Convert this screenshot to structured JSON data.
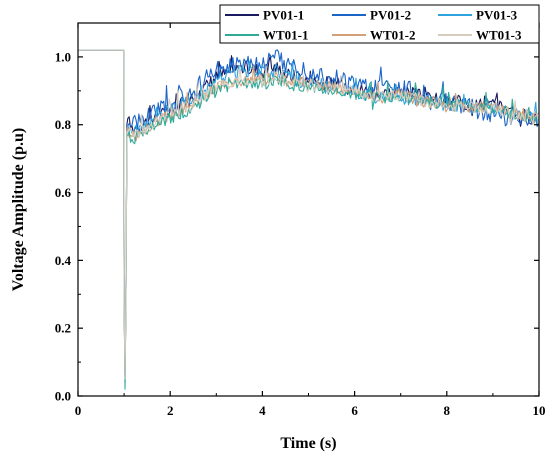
{
  "chart_data": {
    "type": "line",
    "xlabel": "Time (s)",
    "ylabel": "Voltage Amplitude (p.u)",
    "xlim": [
      0,
      10
    ],
    "ylim": [
      0,
      1.1
    ],
    "x_ticks": [
      "0",
      "2",
      "4",
      "6",
      "8",
      "10"
    ],
    "y_ticks": [
      "0.0",
      "0.2",
      "0.4",
      "0.6",
      "0.8",
      "1.0"
    ],
    "grid": false,
    "legend_position": "top-right",
    "anchor_x": [
      0,
      0.99,
      1.0,
      1.02,
      1.04,
      1.06,
      1.1,
      1.2,
      1.5,
      2,
      2.5,
      3,
      3.5,
      4,
      4.3,
      4.5,
      5,
      5.5,
      6,
      6.5,
      7,
      7.5,
      8,
      8.5,
      9,
      9.5,
      10
    ],
    "series": [
      {
        "name": "PV01-1",
        "color": "#1a1a5e",
        "base": [
          1.02,
          1.02,
          0.3,
          0.06,
          0.3,
          0.8,
          0.8,
          0.79,
          0.81,
          0.84,
          0.88,
          0.94,
          0.97,
          0.96,
          0.97,
          0.95,
          0.93,
          0.92,
          0.91,
          0.89,
          0.9,
          0.88,
          0.87,
          0.86,
          0.86,
          0.83,
          0.82
        ],
        "noise": 0.022
      },
      {
        "name": "PV01-2",
        "color": "#1b64c8",
        "base": [
          1.02,
          1.02,
          0.28,
          0.04,
          0.28,
          0.8,
          0.8,
          0.8,
          0.82,
          0.86,
          0.9,
          0.96,
          0.99,
          0.98,
          1.0,
          0.98,
          0.96,
          0.94,
          0.92,
          0.91,
          0.91,
          0.89,
          0.87,
          0.85,
          0.83,
          0.82,
          0.81
        ],
        "noise": 0.028
      },
      {
        "name": "PV01-3",
        "color": "#2da3e0",
        "base": [
          1.02,
          1.02,
          0.3,
          0.05,
          0.3,
          0.78,
          0.78,
          0.78,
          0.8,
          0.84,
          0.88,
          0.93,
          0.96,
          0.95,
          0.96,
          0.94,
          0.92,
          0.91,
          0.9,
          0.88,
          0.89,
          0.87,
          0.86,
          0.85,
          0.85,
          0.83,
          0.82
        ],
        "noise": 0.02
      },
      {
        "name": "WT01-1",
        "color": "#2eaa98",
        "base": [
          1.02,
          1.02,
          0.3,
          0.02,
          0.3,
          0.77,
          0.77,
          0.76,
          0.78,
          0.82,
          0.85,
          0.9,
          0.92,
          0.92,
          0.93,
          0.92,
          0.91,
          0.9,
          0.89,
          0.88,
          0.88,
          0.87,
          0.86,
          0.85,
          0.85,
          0.83,
          0.82
        ],
        "noise": 0.018
      },
      {
        "name": "WT01-2",
        "color": "#d4a078",
        "base": [
          1.02,
          1.02,
          0.3,
          0.05,
          0.3,
          0.78,
          0.78,
          0.77,
          0.79,
          0.83,
          0.86,
          0.91,
          0.93,
          0.93,
          0.94,
          0.93,
          0.92,
          0.91,
          0.9,
          0.88,
          0.89,
          0.87,
          0.86,
          0.85,
          0.85,
          0.83,
          0.82
        ],
        "noise": 0.018
      },
      {
        "name": "WT01-3",
        "color": "#d6ccbe",
        "base": [
          1.02,
          1.02,
          0.3,
          0.05,
          0.3,
          0.78,
          0.78,
          0.77,
          0.79,
          0.83,
          0.86,
          0.91,
          0.93,
          0.93,
          0.94,
          0.93,
          0.92,
          0.91,
          0.9,
          0.88,
          0.89,
          0.87,
          0.86,
          0.85,
          0.85,
          0.83,
          0.82
        ],
        "noise": 0.018
      }
    ]
  }
}
